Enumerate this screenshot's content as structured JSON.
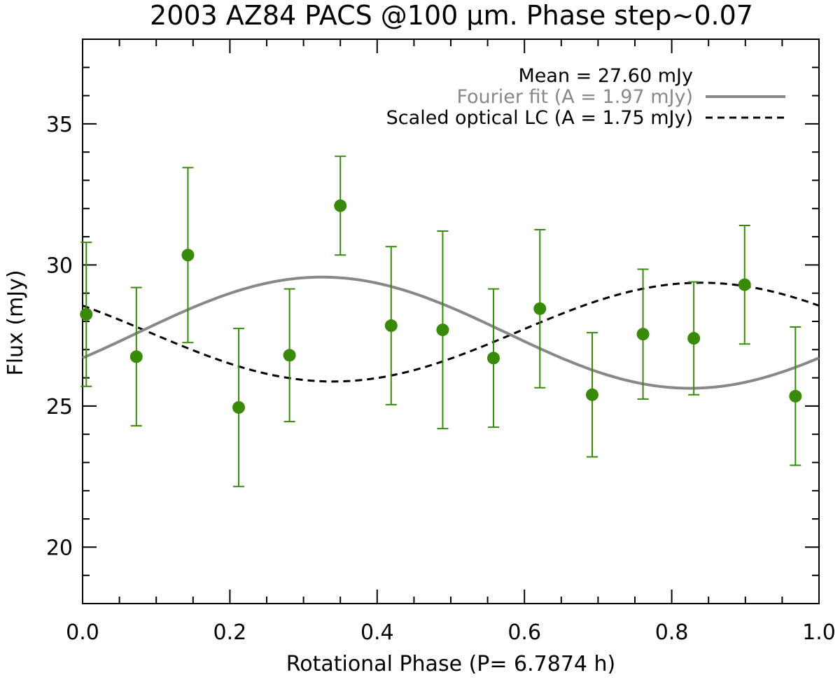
{
  "chart_data": {
    "type": "scatter",
    "title": "2003 AZ84 PACS @100 μm. Phase step~0.07",
    "xlabel": "Rotational Phase (P=  6.7874 h)",
    "ylabel": "Flux (mJy)",
    "xlim": [
      0.0,
      1.0
    ],
    "ylim": [
      18.0,
      38.0
    ],
    "x_ticks": [
      0.0,
      0.2,
      0.4,
      0.6,
      0.8,
      1.0
    ],
    "x_tick_labels": [
      "0.0",
      "0.2",
      "0.4",
      "0.6",
      "0.8",
      "1.0"
    ],
    "y_ticks": [
      20,
      25,
      30,
      35
    ],
    "y_tick_labels": [
      "20",
      "25",
      "30",
      "35"
    ],
    "legend": {
      "position": "top-right",
      "mean_label": "Mean = 27.60 mJy",
      "fourier_label": "Fourier fit (A = 1.97 mJy)",
      "optical_label": "Scaled optical LC (A = 1.75 mJy)"
    },
    "colors": {
      "points": "#3a8a0a",
      "fourier_fit": "#888888",
      "optical_lc": "#000000",
      "axes": "#000000"
    },
    "observations": {
      "name": "PACS 100 μm flux",
      "x": [
        0.005,
        0.073,
        0.143,
        0.212,
        0.281,
        0.35,
        0.419,
        0.489,
        0.558,
        0.621,
        0.692,
        0.761,
        0.83,
        0.899,
        0.968
      ],
      "y": [
        28.25,
        26.75,
        30.35,
        24.95,
        26.8,
        32.1,
        27.85,
        27.7,
        26.7,
        28.45,
        25.4,
        27.55,
        27.4,
        29.3,
        25.35
      ],
      "err": [
        2.55,
        2.45,
        3.1,
        2.8,
        2.35,
        1.75,
        2.8,
        3.5,
        2.45,
        2.8,
        2.2,
        2.3,
        2.0,
        2.1,
        2.45
      ]
    },
    "fourier_fit": {
      "mean": 27.6,
      "amplitude": 1.97,
      "phase_of_max": 0.325
    },
    "optical_lc": {
      "mean": 27.62,
      "amplitude": 1.75,
      "phase_of_max": 0.84
    }
  }
}
